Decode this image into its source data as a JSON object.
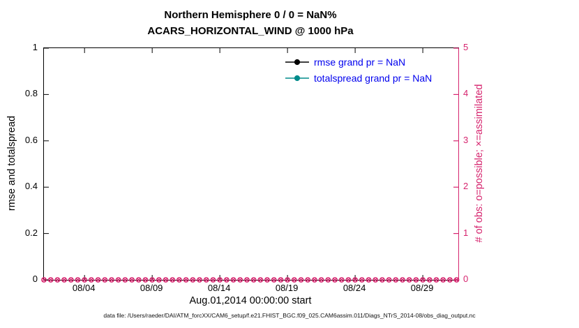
{
  "figure": {
    "footer": "data file: /Users/raeder/DAI/ATM_forcXX/CAM6_setup/f.e21.FHIST_BGC.f09_025.CAM6assim.011/Diags_NTrS_2014-08/obs_diag_output.nc"
  },
  "chart_data": {
    "type": "line",
    "title": "Northern Hemisphere 0 / 0 = NaN%",
    "subtitle": "ACARS_HORIZONTAL_WIND @ 1000 hPa",
    "xlabel": "Aug.01,2014 00:00:00 start",
    "ylabel_left": "rmse and totalspread",
    "ylabel_right": "# of obs: o=possible; ×=assimilated",
    "ylim_left": [
      0,
      1
    ],
    "yticks_left": [
      "0",
      "0.2",
      "0.4",
      "0.6",
      "0.8",
      "1"
    ],
    "ylim_right": [
      0,
      5
    ],
    "yticks_right": [
      "0",
      "1",
      "2",
      "3",
      "4",
      "5"
    ],
    "x_range_days": [
      0,
      30.625
    ],
    "xticks": [
      {
        "day": 3,
        "label": "08/04"
      },
      {
        "day": 8,
        "label": "08/09"
      },
      {
        "day": 13,
        "label": "08/14"
      },
      {
        "day": 18,
        "label": "08/19"
      },
      {
        "day": 23,
        "label": "08/24"
      },
      {
        "day": 28,
        "label": "08/29"
      }
    ],
    "marker_spacing_days": 0.5,
    "legend_location": "upper right inside plot",
    "grid": false,
    "colors": {
      "left_axis": "#000000",
      "right_axis": "#d6246e",
      "legend_text": "#0000ee"
    },
    "series": [
      {
        "name": "rmse",
        "legend_label": "rmse grand pr = NaN",
        "color": "#000000",
        "value": "NaN",
        "values": []
      },
      {
        "name": "totalspread",
        "legend_label": "totalspread grand pr = NaN",
        "color": "#008b8b",
        "value": "NaN",
        "values": []
      },
      {
        "name": "possible-obs",
        "marker": "o",
        "axis": "right",
        "constant_value": 0,
        "n_points": 62,
        "color": "#d6246e"
      },
      {
        "name": "assimilated-obs",
        "marker": "x",
        "axis": "right",
        "constant_value": 0,
        "n_points": 62,
        "color": "#d6246e"
      }
    ]
  }
}
